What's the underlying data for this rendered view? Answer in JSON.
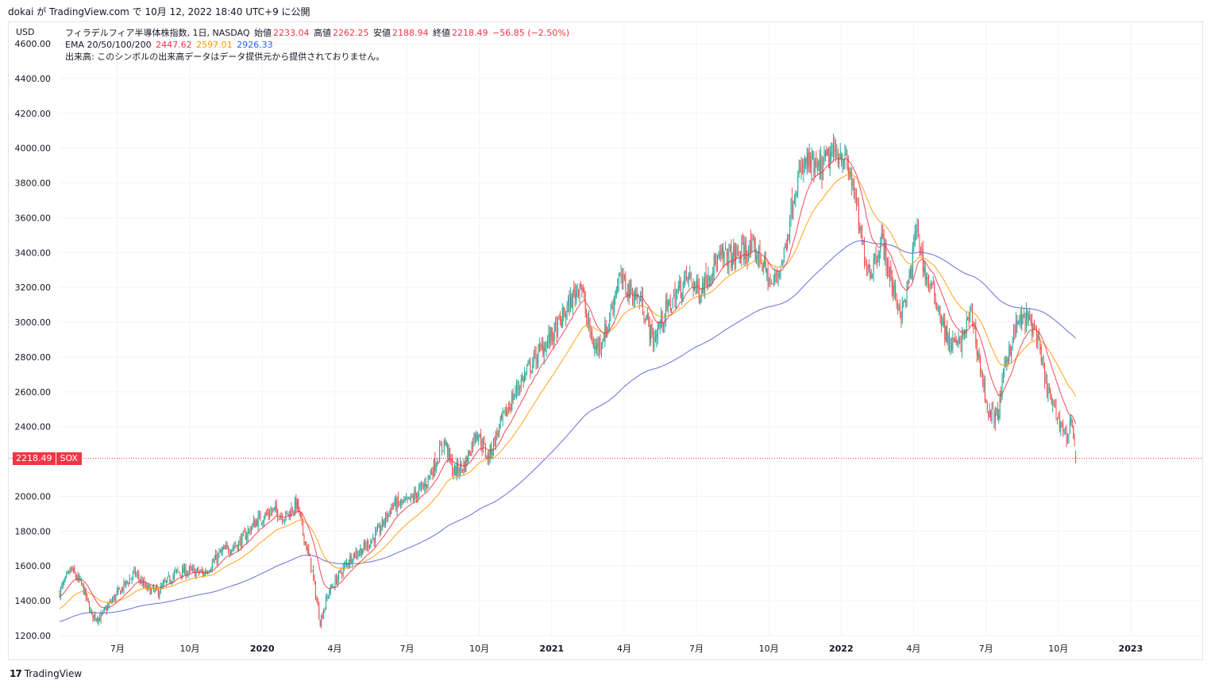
{
  "header": {
    "published_line": "dokai が TradingView.com で 10月 12, 2022 18:40 UTC+9 に公開"
  },
  "legend": {
    "symbol_line": "フィラデルフィア半導体株指数, 1日, NASDAQ",
    "open_label": "始値",
    "open_value": "2233.04",
    "high_label": "高値",
    "high_value": "2262.25",
    "low_label": "安値",
    "low_value": "2188.94",
    "close_label": "終値",
    "close_value": "2218.49",
    "change": "−56.85 (−2.50%)",
    "ema_label": "EMA 20/50/100/200",
    "ema20": "2447.62",
    "ema50": "2597.01",
    "ema200": "2926.33",
    "volume_note": "出来高: このシンボルの出来高データはデータ提供元から提供されておりません。"
  },
  "axis": {
    "currency": "USD"
  },
  "price_label": {
    "value": "2218.49",
    "symbol": "SOX"
  },
  "brand": {
    "name": "TradingView"
  },
  "colors": {
    "up": "#26a69a",
    "down": "#ef5350",
    "ema20": "#f23645",
    "ema50": "#ff9800",
    "ema200": "#2962ff",
    "current": "#f23645"
  },
  "chart_data": {
    "type": "candlestick",
    "x_range": [
      2019.3,
      2023.25
    ],
    "y_range": [
      1200,
      4600
    ],
    "y_ticks": [
      1200,
      1400,
      1600,
      1800,
      2000,
      2200,
      2400,
      2600,
      2800,
      3000,
      3200,
      3400,
      3600,
      3800,
      4000,
      4200,
      4400,
      4600
    ],
    "y_tick_labels": [
      "1200.00",
      "1400.00",
      "1600.00",
      "1800.00",
      "2000.00",
      "",
      "2400.00",
      "2600.00",
      "2800.00",
      "3000.00",
      "3200.00",
      "3400.00",
      "3600.00",
      "3800.00",
      "4000.00",
      "4200.00",
      "4400.00",
      "4600.00"
    ],
    "x_ticks": [
      {
        "label": "7月",
        "t": 2019.5,
        "bold": false
      },
      {
        "label": "10月",
        "t": 2019.75,
        "bold": false
      },
      {
        "label": "2020",
        "t": 2020.0,
        "bold": true
      },
      {
        "label": "4月",
        "t": 2020.25,
        "bold": false
      },
      {
        "label": "7月",
        "t": 2020.5,
        "bold": false
      },
      {
        "label": "10月",
        "t": 2020.75,
        "bold": false
      },
      {
        "label": "2021",
        "t": 2021.0,
        "bold": true
      },
      {
        "label": "4月",
        "t": 2021.25,
        "bold": false
      },
      {
        "label": "7月",
        "t": 2021.5,
        "bold": false
      },
      {
        "label": "10月",
        "t": 2021.75,
        "bold": false
      },
      {
        "label": "2022",
        "t": 2022.0,
        "bold": true
      },
      {
        "label": "4月",
        "t": 2022.25,
        "bold": false
      },
      {
        "label": "7月",
        "t": 2022.5,
        "bold": false
      },
      {
        "label": "10月",
        "t": 2022.75,
        "bold": false
      },
      {
        "label": "2023",
        "t": 2023.0,
        "bold": true
      }
    ],
    "last_price": 2218.49,
    "price_path": [
      [
        2019.3,
        1450
      ],
      [
        2019.34,
        1580
      ],
      [
        2019.38,
        1480
      ],
      [
        2019.41,
        1320
      ],
      [
        2019.44,
        1300
      ],
      [
        2019.48,
        1400
      ],
      [
        2019.52,
        1480
      ],
      [
        2019.56,
        1560
      ],
      [
        2019.6,
        1470
      ],
      [
        2019.64,
        1450
      ],
      [
        2019.7,
        1560
      ],
      [
        2019.74,
        1570
      ],
      [
        2019.8,
        1560
      ],
      [
        2019.86,
        1680
      ],
      [
        2019.92,
        1730
      ],
      [
        2019.98,
        1860
      ],
      [
        2020.04,
        1920
      ],
      [
        2020.08,
        1880
      ],
      [
        2020.12,
        1960
      ],
      [
        2020.14,
        1800
      ],
      [
        2020.17,
        1590
      ],
      [
        2020.2,
        1280
      ],
      [
        2020.23,
        1450
      ],
      [
        2020.27,
        1560
      ],
      [
        2020.31,
        1660
      ],
      [
        2020.35,
        1700
      ],
      [
        2020.4,
        1790
      ],
      [
        2020.45,
        1950
      ],
      [
        2020.5,
        1960
      ],
      [
        2020.56,
        2060
      ],
      [
        2020.6,
        2200
      ],
      [
        2020.63,
        2320
      ],
      [
        2020.66,
        2140
      ],
      [
        2020.7,
        2180
      ],
      [
        2020.74,
        2380
      ],
      [
        2020.78,
        2220
      ],
      [
        2020.82,
        2400
      ],
      [
        2020.88,
        2620
      ],
      [
        2020.93,
        2760
      ],
      [
        2020.97,
        2860
      ],
      [
        2021.01,
        2940
      ],
      [
        2021.06,
        3100
      ],
      [
        2021.1,
        3240
      ],
      [
        2021.12,
        3020
      ],
      [
        2021.15,
        2840
      ],
      [
        2021.19,
        2960
      ],
      [
        2021.23,
        3250
      ],
      [
        2021.27,
        3180
      ],
      [
        2021.31,
        3120
      ],
      [
        2021.35,
        2890
      ],
      [
        2021.39,
        3050
      ],
      [
        2021.43,
        3160
      ],
      [
        2021.47,
        3260
      ],
      [
        2021.51,
        3180
      ],
      [
        2021.55,
        3310
      ],
      [
        2021.59,
        3370
      ],
      [
        2021.63,
        3380
      ],
      [
        2021.68,
        3420
      ],
      [
        2021.72,
        3380
      ],
      [
        2021.76,
        3200
      ],
      [
        2021.8,
        3370
      ],
      [
        2021.84,
        3780
      ],
      [
        2021.88,
        3920
      ],
      [
        2021.92,
        3860
      ],
      [
        2021.96,
        3950
      ],
      [
        2022.0,
        3980
      ],
      [
        2022.04,
        3800
      ],
      [
        2022.07,
        3450
      ],
      [
        2022.1,
        3290
      ],
      [
        2022.14,
        3480
      ],
      [
        2022.18,
        3180
      ],
      [
        2022.21,
        3050
      ],
      [
        2022.24,
        3280
      ],
      [
        2022.26,
        3560
      ],
      [
        2022.29,
        3270
      ],
      [
        2022.33,
        3120
      ],
      [
        2022.37,
        2880
      ],
      [
        2022.41,
        2870
      ],
      [
        2022.45,
        3060
      ],
      [
        2022.48,
        2740
      ],
      [
        2022.51,
        2470
      ],
      [
        2022.54,
        2460
      ],
      [
        2022.57,
        2790
      ],
      [
        2022.61,
        3000
      ],
      [
        2022.64,
        3020
      ],
      [
        2022.67,
        2960
      ],
      [
        2022.7,
        2700
      ],
      [
        2022.73,
        2510
      ],
      [
        2022.76,
        2420
      ],
      [
        2022.78,
        2330
      ],
      [
        2022.795,
        2460
      ],
      [
        2022.81,
        2218
      ]
    ],
    "ema_endpoints": {
      "ema20": 2447.62,
      "ema50": 2597.01,
      "ema200": 2926.33
    }
  }
}
